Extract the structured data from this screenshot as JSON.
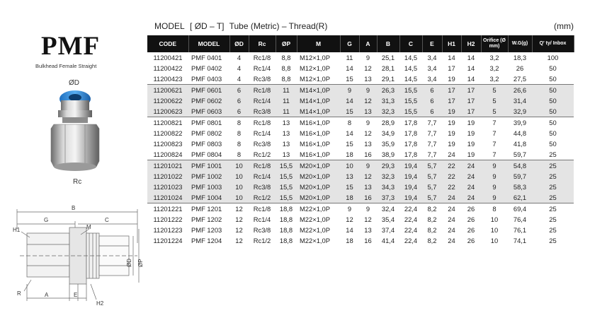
{
  "brand": "PMF",
  "subtitle": "Bulkhead Female Straight",
  "labels": {
    "od": "ØD",
    "rc": "Rc"
  },
  "drawing": {
    "labels": {
      "B": "B",
      "G": "G",
      "H1": "H1",
      "M": "M",
      "C": "C",
      "A": "A",
      "E": "E",
      "R": "R",
      "H2": "H2",
      "OD": "ØD",
      "OP": "ØP"
    }
  },
  "title": {
    "model": "MODEL",
    "model_spec": "[ ØD – T]",
    "desc": "Tube (Metric) – Thread(R)",
    "unit": "(mm)"
  },
  "columns": [
    "CODE",
    "MODEL",
    "ØD",
    "Rc",
    "ØP",
    "M",
    "G",
    "A",
    "B",
    "C",
    "E",
    "H1",
    "H2",
    "Orifice (Ø mm)",
    "W.G(g)",
    "Q' ty/ Inbox"
  ],
  "groups": [
    {
      "shade": false,
      "rows": [
        [
          "11200421",
          "PMF 0401",
          "4",
          "Rc1/8",
          "8,8",
          "M12×1,0P",
          "11",
          "9",
          "25,1",
          "14,5",
          "3,4",
          "14",
          "14",
          "3,2",
          "18,3",
          "100"
        ],
        [
          "11200422",
          "PMF 0402",
          "4",
          "Rc1/4",
          "8,8",
          "M12×1,0P",
          "14",
          "12",
          "28,1",
          "14,5",
          "3,4",
          "17",
          "14",
          "3,2",
          "26",
          "50"
        ],
        [
          "11200423",
          "PMF 0403",
          "4",
          "Rc3/8",
          "8,8",
          "M12×1,0P",
          "15",
          "13",
          "29,1",
          "14,5",
          "3,4",
          "19",
          "14",
          "3,2",
          "27,5",
          "50"
        ]
      ]
    },
    {
      "shade": true,
      "rows": [
        [
          "11200621",
          "PMF 0601",
          "6",
          "Rc1/8",
          "11",
          "M14×1,0P",
          "9",
          "9",
          "26,3",
          "15,5",
          "6",
          "17",
          "17",
          "5",
          "26,6",
          "50"
        ],
        [
          "11200622",
          "PMF 0602",
          "6",
          "Rc1/4",
          "11",
          "M14×1,0P",
          "14",
          "12",
          "31,3",
          "15,5",
          "6",
          "17",
          "17",
          "5",
          "31,4",
          "50"
        ],
        [
          "11200623",
          "PMF 0603",
          "6",
          "Rc3/8",
          "11",
          "M14×1,0P",
          "15",
          "13",
          "32,3",
          "15,5",
          "6",
          "19",
          "17",
          "5",
          "32,9",
          "50"
        ]
      ]
    },
    {
      "shade": false,
      "rows": [
        [
          "11200821",
          "PMF 0801",
          "8",
          "Rc1/8",
          "13",
          "M16×1,0P",
          "8",
          "9",
          "28,9",
          "17,8",
          "7,7",
          "19",
          "19",
          "7",
          "39,9",
          "50"
        ],
        [
          "11200822",
          "PMF 0802",
          "8",
          "Rc1/4",
          "13",
          "M16×1,0P",
          "14",
          "12",
          "34,9",
          "17,8",
          "7,7",
          "19",
          "19",
          "7",
          "44,8",
          "50"
        ],
        [
          "11200823",
          "PMF 0803",
          "8",
          "Rc3/8",
          "13",
          "M16×1,0P",
          "15",
          "13",
          "35,9",
          "17,8",
          "7,7",
          "19",
          "19",
          "7",
          "41,8",
          "50"
        ],
        [
          "11200824",
          "PMF 0804",
          "8",
          "Rc1/2",
          "13",
          "M16×1,0P",
          "18",
          "16",
          "38,9",
          "17,8",
          "7,7",
          "24",
          "19",
          "7",
          "59,7",
          "25"
        ]
      ]
    },
    {
      "shade": true,
      "rows": [
        [
          "11201021",
          "PMF 1001",
          "10",
          "Rc1/8",
          "15,5",
          "M20×1,0P",
          "10",
          "9",
          "29,3",
          "19,4",
          "5,7",
          "22",
          "24",
          "9",
          "54,8",
          "25"
        ],
        [
          "11201022",
          "PMF 1002",
          "10",
          "Rc1/4",
          "15,5",
          "M20×1,0P",
          "13",
          "12",
          "32,3",
          "19,4",
          "5,7",
          "22",
          "24",
          "9",
          "59,7",
          "25"
        ],
        [
          "11201023",
          "PMF 1003",
          "10",
          "Rc3/8",
          "15,5",
          "M20×1,0P",
          "15",
          "13",
          "34,3",
          "19,4",
          "5,7",
          "22",
          "24",
          "9",
          "58,3",
          "25"
        ],
        [
          "11201024",
          "PMF 1004",
          "10",
          "Rc1/2",
          "15,5",
          "M20×1,0P",
          "18",
          "16",
          "37,3",
          "19,4",
          "5,7",
          "24",
          "24",
          "9",
          "62,1",
          "25"
        ]
      ]
    },
    {
      "shade": false,
      "rows": [
        [
          "11201221",
          "PMF 1201",
          "12",
          "Rc1/8",
          "18,8",
          "M22×1,0P",
          "9",
          "9",
          "32,4",
          "22,4",
          "8,2",
          "24",
          "26",
          "8",
          "69,4",
          "25"
        ],
        [
          "11201222",
          "PMF 1202",
          "12",
          "Rc1/4",
          "18,8",
          "M22×1,0P",
          "12",
          "12",
          "35,4",
          "22,4",
          "8,2",
          "24",
          "26",
          "10",
          "76,4",
          "25"
        ],
        [
          "11201223",
          "PMF 1203",
          "12",
          "Rc3/8",
          "18,8",
          "M22×1,0P",
          "14",
          "13",
          "37,4",
          "22,4",
          "8,2",
          "24",
          "26",
          "10",
          "76,1",
          "25"
        ],
        [
          "11201224",
          "PMF 1204",
          "12",
          "Rc1/2",
          "18,8",
          "M22×1,0P",
          "18",
          "16",
          "41,4",
          "22,4",
          "8,2",
          "24",
          "26",
          "10",
          "74,1",
          "25"
        ]
      ]
    }
  ]
}
